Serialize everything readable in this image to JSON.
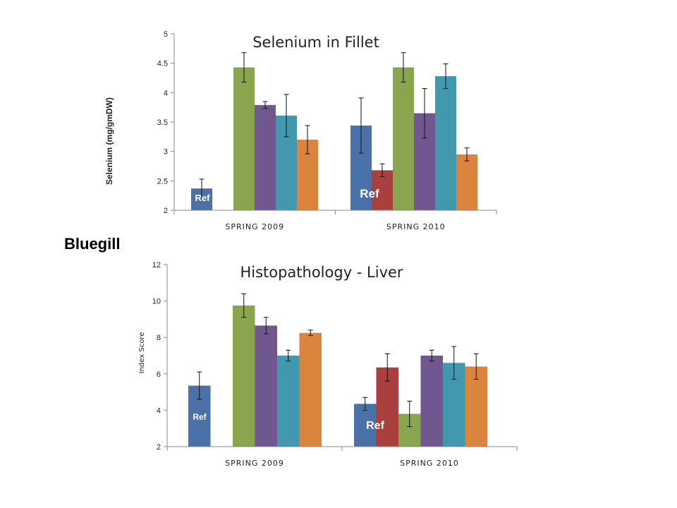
{
  "species_label": "Bluegill",
  "colors": {
    "blue": "#4a72a8",
    "red": "#a9403e",
    "green": "#89a54e",
    "purple": "#71578f",
    "teal": "#4198af",
    "orange": "#db843d"
  },
  "chart_data": [
    {
      "type": "bar",
      "title": "Selenium in Fillet",
      "ylabel": "Selenium (mg/gmDW)",
      "xlabel": "",
      "ylim": [
        2,
        5
      ],
      "yticks": [
        "2",
        "2.5",
        "3",
        "3.5",
        "4",
        "4.5",
        "5"
      ],
      "grid": false,
      "legend": "none",
      "categories": [
        "SPRING 2009",
        "SPRING 2010"
      ],
      "series_colors": [
        "blue",
        "red",
        "green",
        "purple",
        "teal",
        "orange"
      ],
      "values": [
        [
          2.37,
          null,
          4.43,
          3.79,
          3.61,
          3.2
        ],
        [
          3.44,
          2.68,
          4.43,
          3.65,
          4.28,
          2.95
        ]
      ],
      "errors": [
        [
          0.16,
          null,
          0.25,
          0.06,
          0.36,
          0.24
        ],
        [
          0.47,
          0.11,
          0.25,
          0.42,
          0.21,
          0.11
        ]
      ],
      "annotations": [
        "Ref",
        "Ref"
      ]
    },
    {
      "type": "bar",
      "title": "Histopathology - Liver",
      "ylabel": "Index Score",
      "xlabel": "",
      "ylim": [
        2,
        12
      ],
      "yticks": [
        "2",
        "4",
        "6",
        "8",
        "10",
        "12"
      ],
      "grid": false,
      "legend": "none",
      "categories": [
        "SPRING 2009",
        "SPRING 2010"
      ],
      "series_colors": [
        "blue",
        "red",
        "green",
        "purple",
        "teal",
        "orange"
      ],
      "values": [
        [
          5.35,
          null,
          9.75,
          8.65,
          7.0,
          8.25
        ],
        [
          4.35,
          6.35,
          3.8,
          7.0,
          6.6,
          6.4
        ]
      ],
      "errors": [
        [
          0.75,
          null,
          0.65,
          0.45,
          0.3,
          0.15
        ],
        [
          0.35,
          0.75,
          0.7,
          0.3,
          0.9,
          0.7
        ]
      ],
      "annotations": [
        "Ref",
        "Ref"
      ]
    }
  ]
}
